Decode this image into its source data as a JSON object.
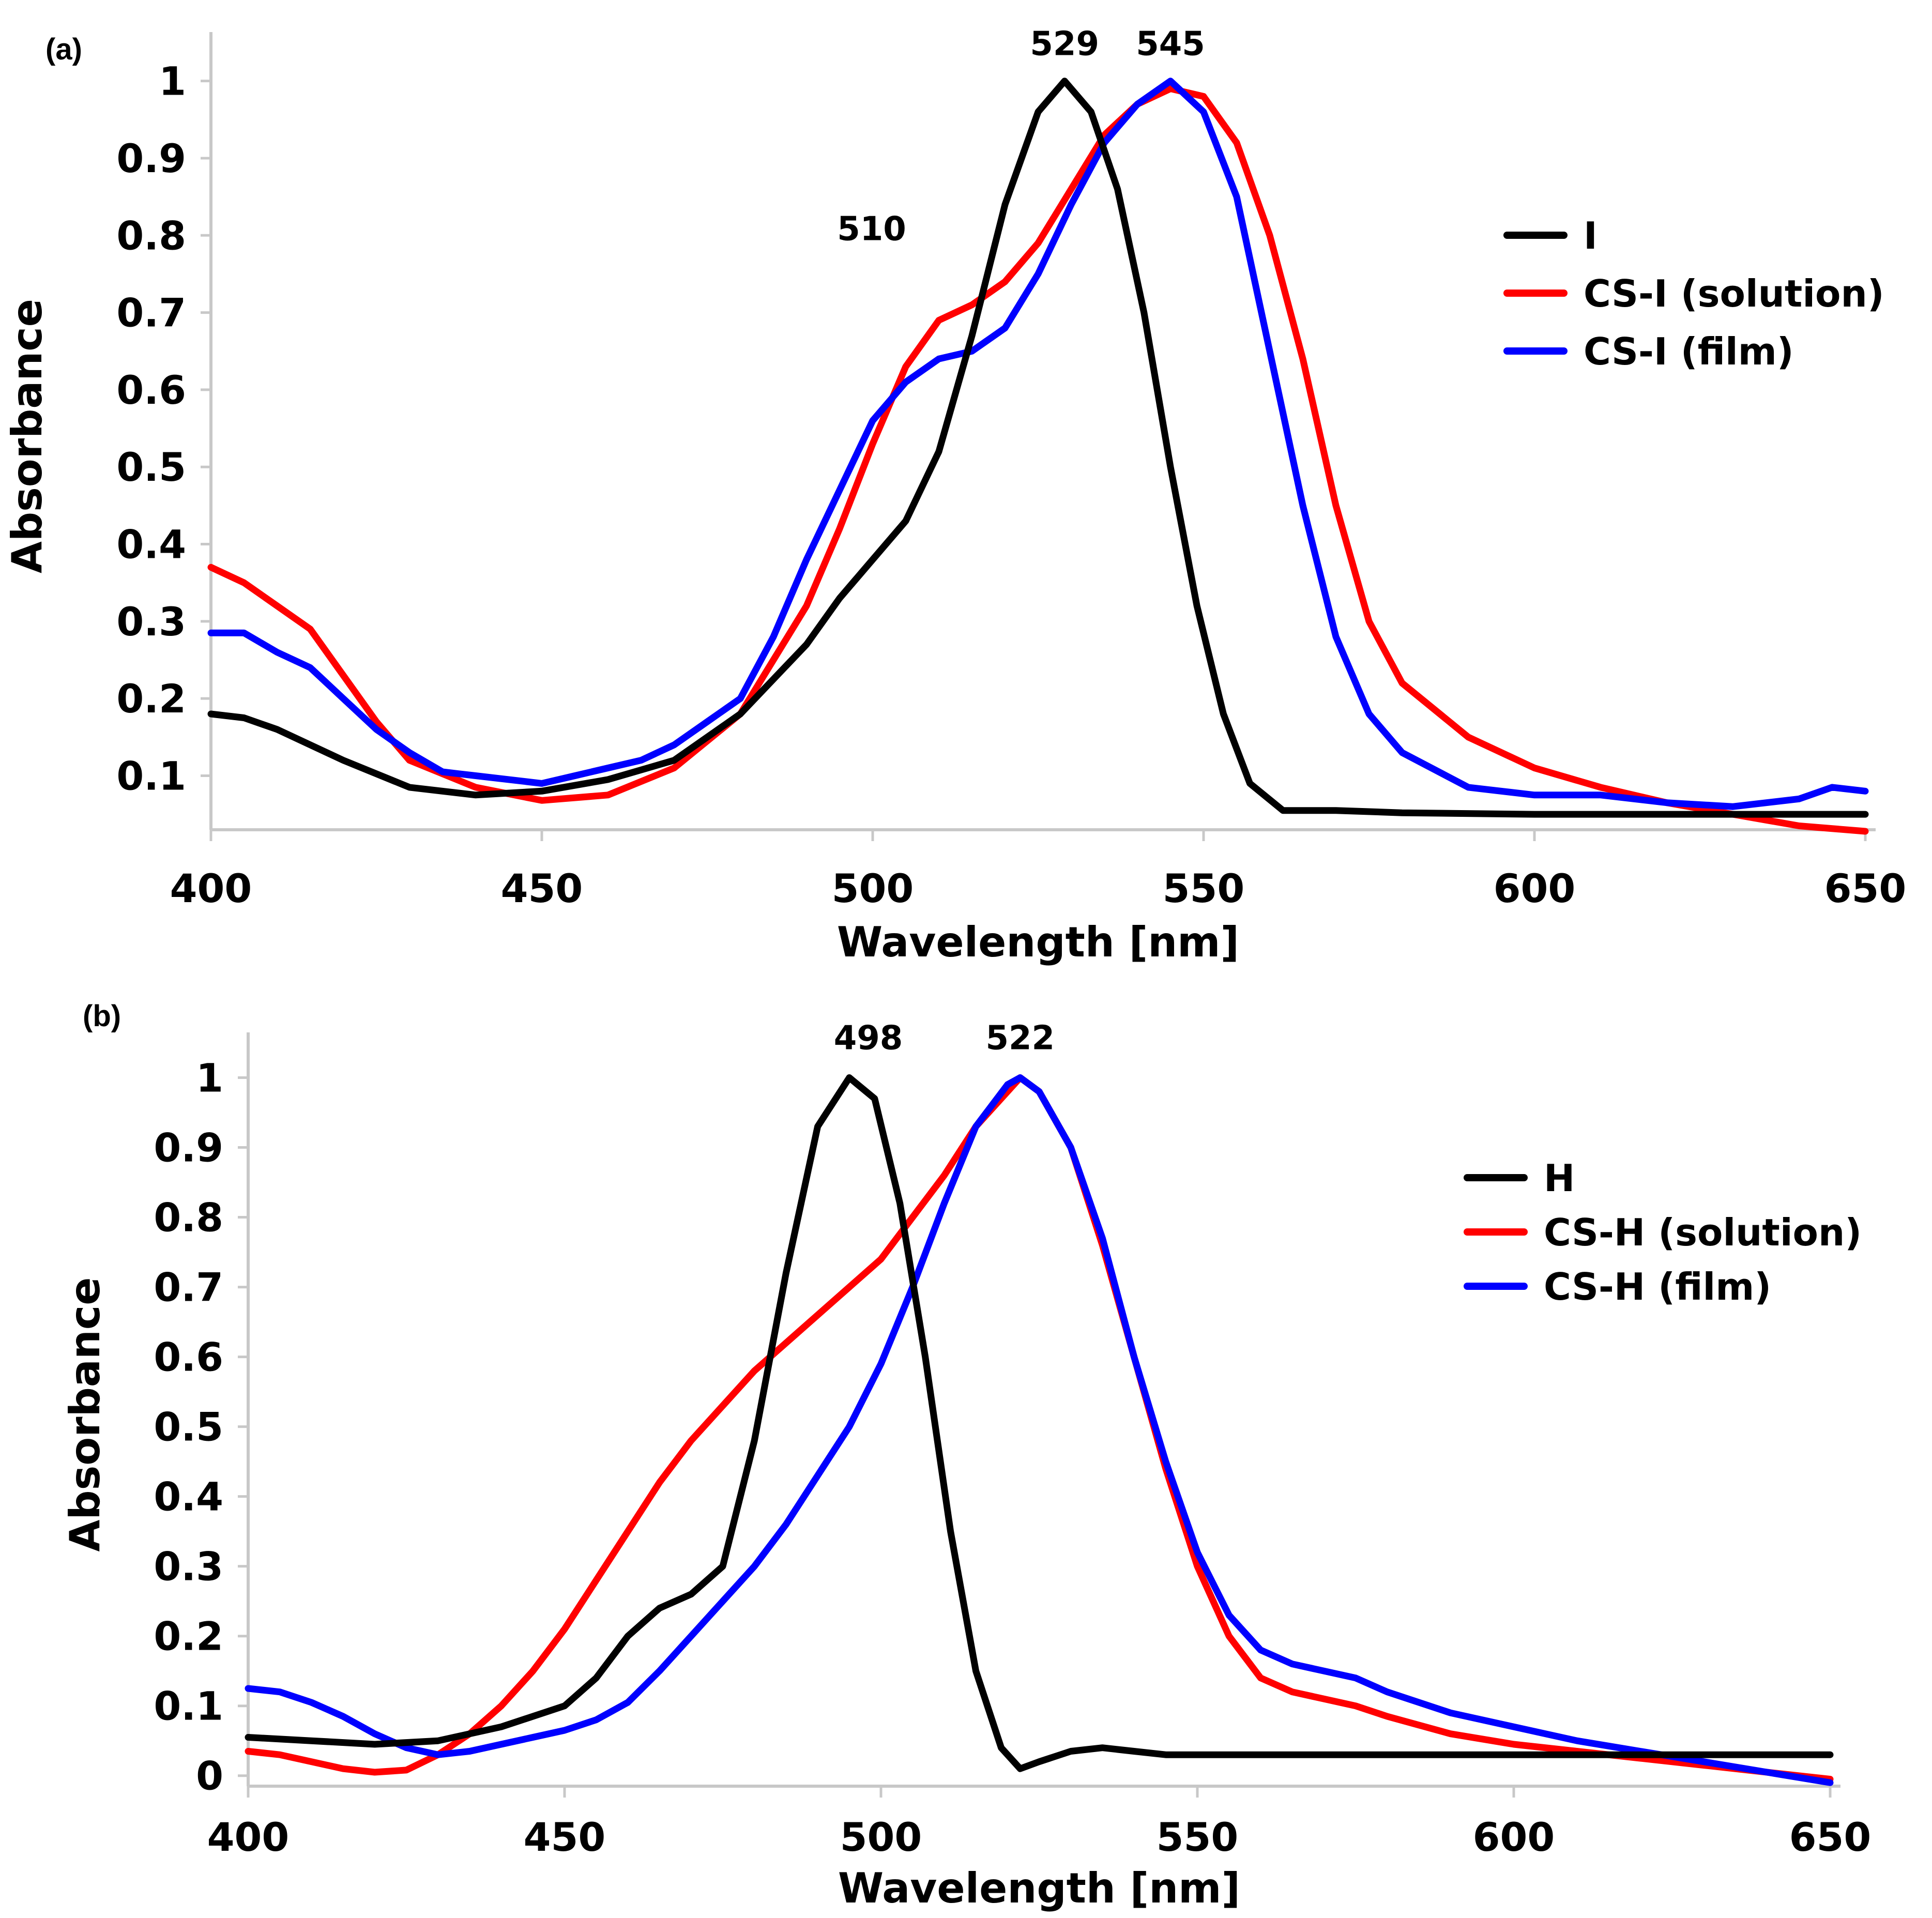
{
  "chart_data": [
    {
      "panel_label": "(a)",
      "type": "line",
      "title": "",
      "xlabel": "Wavelength [nm]",
      "ylabel": "Absorbance",
      "xlim": [
        400,
        650
      ],
      "ylim": [
        0.03,
        1.05
      ],
      "xticks": [
        400,
        450,
        500,
        550,
        600,
        650
      ],
      "yticks": [
        0.1,
        0.2,
        0.3,
        0.4,
        0.5,
        0.6,
        0.7,
        0.8,
        0.9,
        1
      ],
      "ytick_labels": [
        "0.1",
        "0.2",
        "0.3",
        "0.4",
        "0.5",
        "0.6",
        "0.7",
        "0.8",
        "0.9",
        "1"
      ],
      "grid": false,
      "legend_position": "right",
      "annotations": [
        {
          "text": "529",
          "x": 529,
          "y": 1.0
        },
        {
          "text": "545",
          "x": 545,
          "y": 1.0
        },
        {
          "text": "510",
          "x": 510,
          "y": 0.7
        }
      ],
      "series": [
        {
          "name": "I",
          "color": "#000000",
          "points": [
            [
              400,
              0.18
            ],
            [
              405,
              0.175
            ],
            [
              410,
              0.16
            ],
            [
              420,
              0.12
            ],
            [
              430,
              0.085
            ],
            [
              440,
              0.075
            ],
            [
              450,
              0.08
            ],
            [
              460,
              0.095
            ],
            [
              470,
              0.12
            ],
            [
              480,
              0.18
            ],
            [
              490,
              0.27
            ],
            [
              495,
              0.33
            ],
            [
              500,
              0.38
            ],
            [
              505,
              0.43
            ],
            [
              510,
              0.52
            ],
            [
              515,
              0.67
            ],
            [
              520,
              0.84
            ],
            [
              525,
              0.96
            ],
            [
              529,
              1.0
            ],
            [
              533,
              0.96
            ],
            [
              537,
              0.86
            ],
            [
              541,
              0.7
            ],
            [
              545,
              0.5
            ],
            [
              549,
              0.32
            ],
            [
              553,
              0.18
            ],
            [
              557,
              0.09
            ],
            [
              562,
              0.055
            ],
            [
              570,
              0.055
            ],
            [
              580,
              0.052
            ],
            [
              600,
              0.05
            ],
            [
              620,
              0.05
            ],
            [
              650,
              0.05
            ]
          ]
        },
        {
          "name": "CS-I (solution)",
          "color": "#ff0000",
          "points": [
            [
              400,
              0.37
            ],
            [
              405,
              0.35
            ],
            [
              410,
              0.32
            ],
            [
              415,
              0.29
            ],
            [
              420,
              0.23
            ],
            [
              425,
              0.17
            ],
            [
              430,
              0.12
            ],
            [
              440,
              0.085
            ],
            [
              450,
              0.068
            ],
            [
              460,
              0.075
            ],
            [
              470,
              0.11
            ],
            [
              480,
              0.18
            ],
            [
              490,
              0.32
            ],
            [
              495,
              0.42
            ],
            [
              500,
              0.53
            ],
            [
              505,
              0.63
            ],
            [
              510,
              0.69
            ],
            [
              515,
              0.71
            ],
            [
              520,
              0.74
            ],
            [
              525,
              0.79
            ],
            [
              530,
              0.86
            ],
            [
              535,
              0.93
            ],
            [
              540,
              0.97
            ],
            [
              545,
              0.99
            ],
            [
              550,
              0.98
            ],
            [
              555,
              0.92
            ],
            [
              560,
              0.8
            ],
            [
              565,
              0.64
            ],
            [
              570,
              0.45
            ],
            [
              575,
              0.3
            ],
            [
              580,
              0.22
            ],
            [
              590,
              0.15
            ],
            [
              600,
              0.11
            ],
            [
              610,
              0.085
            ],
            [
              620,
              0.065
            ],
            [
              630,
              0.05
            ],
            [
              640,
              0.035
            ],
            [
              650,
              0.028
            ]
          ]
        },
        {
          "name": "CS-I (film)",
          "color": "#0000ff",
          "points": [
            [
              400,
              0.285
            ],
            [
              405,
              0.285
            ],
            [
              410,
              0.26
            ],
            [
              415,
              0.24
            ],
            [
              420,
              0.2
            ],
            [
              425,
              0.16
            ],
            [
              430,
              0.13
            ],
            [
              435,
              0.105
            ],
            [
              440,
              0.1
            ],
            [
              445,
              0.095
            ],
            [
              450,
              0.09
            ],
            [
              455,
              0.1
            ],
            [
              460,
              0.11
            ],
            [
              465,
              0.12
            ],
            [
              470,
              0.14
            ],
            [
              475,
              0.17
            ],
            [
              480,
              0.2
            ],
            [
              485,
              0.28
            ],
            [
              490,
              0.38
            ],
            [
              495,
              0.47
            ],
            [
              500,
              0.56
            ],
            [
              505,
              0.61
            ],
            [
              510,
              0.64
            ],
            [
              515,
              0.65
            ],
            [
              520,
              0.68
            ],
            [
              525,
              0.75
            ],
            [
              530,
              0.84
            ],
            [
              535,
              0.92
            ],
            [
              540,
              0.97
            ],
            [
              545,
              1.0
            ],
            [
              550,
              0.96
            ],
            [
              555,
              0.85
            ],
            [
              560,
              0.65
            ],
            [
              565,
              0.45
            ],
            [
              570,
              0.28
            ],
            [
              575,
              0.18
            ],
            [
              580,
              0.13
            ],
            [
              590,
              0.085
            ],
            [
              600,
              0.075
            ],
            [
              610,
              0.075
            ],
            [
              620,
              0.065
            ],
            [
              630,
              0.06
            ],
            [
              640,
              0.07
            ],
            [
              645,
              0.085
            ],
            [
              650,
              0.08
            ]
          ]
        }
      ]
    },
    {
      "panel_label": "(b)",
      "type": "line",
      "title": "",
      "xlabel": "Wavelength [nm]",
      "ylabel": "Absorbance",
      "xlim": [
        400,
        650
      ],
      "ylim": [
        -0.015,
        1.05
      ],
      "xticks": [
        400,
        450,
        500,
        550,
        600,
        650
      ],
      "yticks": [
        0,
        0.1,
        0.2,
        0.3,
        0.4,
        0.5,
        0.6,
        0.7,
        0.8,
        0.9,
        1
      ],
      "ytick_labels": [
        "0",
        "0.1",
        "0.2",
        "0.3",
        "0.4",
        "0.5",
        "0.6",
        "0.7",
        "0.8",
        "0.9",
        "1"
      ],
      "grid": false,
      "legend_position": "right",
      "annotations": [
        {
          "text": "498",
          "x": 498,
          "y": 1.0
        },
        {
          "text": "522",
          "x": 522,
          "y": 1.0
        }
      ],
      "series": [
        {
          "name": "H",
          "color": "#000000",
          "points": [
            [
              400,
              0.055
            ],
            [
              410,
              0.05
            ],
            [
              420,
              0.045
            ],
            [
              430,
              0.05
            ],
            [
              440,
              0.07
            ],
            [
              450,
              0.1
            ],
            [
              455,
              0.14
            ],
            [
              460,
              0.2
            ],
            [
              465,
              0.24
            ],
            [
              470,
              0.26
            ],
            [
              475,
              0.3
            ],
            [
              480,
              0.48
            ],
            [
              485,
              0.72
            ],
            [
              490,
              0.93
            ],
            [
              495,
              1.0
            ],
            [
              499,
              0.97
            ],
            [
              503,
              0.82
            ],
            [
              507,
              0.6
            ],
            [
              511,
              0.35
            ],
            [
              515,
              0.15
            ],
            [
              519,
              0.04
            ],
            [
              522,
              0.01
            ],
            [
              525,
              0.02
            ],
            [
              530,
              0.035
            ],
            [
              535,
              0.04
            ],
            [
              540,
              0.035
            ],
            [
              545,
              0.03
            ],
            [
              560,
              0.03
            ],
            [
              600,
              0.03
            ],
            [
              650,
              0.03
            ]
          ]
        },
        {
          "name": "CS-H (solution)",
          "color": "#ff0000",
          "points": [
            [
              400,
              0.035
            ],
            [
              405,
              0.03
            ],
            [
              410,
              0.02
            ],
            [
              415,
              0.01
            ],
            [
              420,
              0.005
            ],
            [
              425,
              0.008
            ],
            [
              430,
              0.03
            ],
            [
              435,
              0.06
            ],
            [
              440,
              0.1
            ],
            [
              445,
              0.15
            ],
            [
              450,
              0.21
            ],
            [
              455,
              0.28
            ],
            [
              460,
              0.35
            ],
            [
              465,
              0.42
            ],
            [
              470,
              0.48
            ],
            [
              475,
              0.53
            ],
            [
              480,
              0.58
            ],
            [
              485,
              0.62
            ],
            [
              490,
              0.66
            ],
            [
              495,
              0.7
            ],
            [
              500,
              0.74
            ],
            [
              505,
              0.8
            ],
            [
              510,
              0.86
            ],
            [
              515,
              0.93
            ],
            [
              520,
              0.98
            ],
            [
              522,
              1.0
            ],
            [
              525,
              0.98
            ],
            [
              530,
              0.9
            ],
            [
              535,
              0.76
            ],
            [
              540,
              0.6
            ],
            [
              545,
              0.44
            ],
            [
              550,
              0.3
            ],
            [
              555,
              0.2
            ],
            [
              560,
              0.14
            ],
            [
              565,
              0.12
            ],
            [
              570,
              0.11
            ],
            [
              575,
              0.1
            ],
            [
              580,
              0.085
            ],
            [
              590,
              0.06
            ],
            [
              600,
              0.045
            ],
            [
              610,
              0.035
            ],
            [
              620,
              0.025
            ],
            [
              630,
              0.015
            ],
            [
              640,
              0.005
            ],
            [
              650,
              -0.005
            ]
          ]
        },
        {
          "name": "CS-H (film)",
          "color": "#0000ff",
          "points": [
            [
              400,
              0.125
            ],
            [
              405,
              0.12
            ],
            [
              410,
              0.105
            ],
            [
              415,
              0.085
            ],
            [
              420,
              0.06
            ],
            [
              425,
              0.04
            ],
            [
              430,
              0.03
            ],
            [
              435,
              0.035
            ],
            [
              440,
              0.045
            ],
            [
              445,
              0.055
            ],
            [
              450,
              0.065
            ],
            [
              455,
              0.08
            ],
            [
              460,
              0.105
            ],
            [
              465,
              0.15
            ],
            [
              470,
              0.2
            ],
            [
              475,
              0.25
            ],
            [
              480,
              0.3
            ],
            [
              485,
              0.36
            ],
            [
              490,
              0.43
            ],
            [
              495,
              0.5
            ],
            [
              500,
              0.59
            ],
            [
              505,
              0.7
            ],
            [
              510,
              0.82
            ],
            [
              515,
              0.93
            ],
            [
              520,
              0.99
            ],
            [
              522,
              1.0
            ],
            [
              525,
              0.98
            ],
            [
              530,
              0.9
            ],
            [
              535,
              0.77
            ],
            [
              540,
              0.6
            ],
            [
              545,
              0.45
            ],
            [
              550,
              0.32
            ],
            [
              555,
              0.23
            ],
            [
              560,
              0.18
            ],
            [
              565,
              0.16
            ],
            [
              570,
              0.15
            ],
            [
              575,
              0.14
            ],
            [
              580,
              0.12
            ],
            [
              590,
              0.09
            ],
            [
              600,
              0.07
            ],
            [
              610,
              0.05
            ],
            [
              620,
              0.035
            ],
            [
              630,
              0.02
            ],
            [
              640,
              0.005
            ],
            [
              650,
              -0.01
            ]
          ]
        }
      ]
    }
  ]
}
